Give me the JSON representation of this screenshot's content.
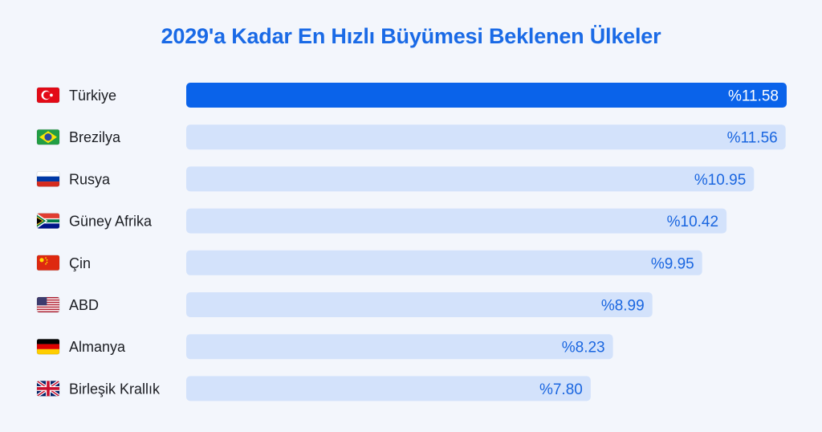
{
  "chart_data": {
    "type": "bar",
    "orientation": "horizontal",
    "title": "2029'a Kadar En Hızlı Büyümesi Beklenen Ülkeler",
    "categories": [
      "Türkiye",
      "Brezilya",
      "Rusya",
      "Güney Afrika",
      "Çin",
      "ABD",
      "Almanya",
      "Birleşik Krallık"
    ],
    "values": [
      11.58,
      11.56,
      10.95,
      10.42,
      9.95,
      8.99,
      8.23,
      7.8
    ],
    "value_labels": [
      "%11.58",
      "%11.56",
      "%10.95",
      "%10.42",
      "%9.95",
      "%8.99",
      "%8.23",
      "%7.80"
    ],
    "flag_icons": [
      "turkey-flag-icon",
      "brazil-flag-icon",
      "russia-flag-icon",
      "south-africa-flag-icon",
      "china-flag-icon",
      "usa-flag-icon",
      "germany-flag-icon",
      "uk-flag-icon"
    ],
    "xlim": [
      0,
      11.58
    ],
    "grid": false,
    "legend": "none",
    "colors": {
      "highlight_bar": "#0a63ea",
      "bar": "#d3e2fb",
      "highlight_text": "#ffffff",
      "value_text": "#1a66e0",
      "title": "#1a6ae6"
    }
  }
}
